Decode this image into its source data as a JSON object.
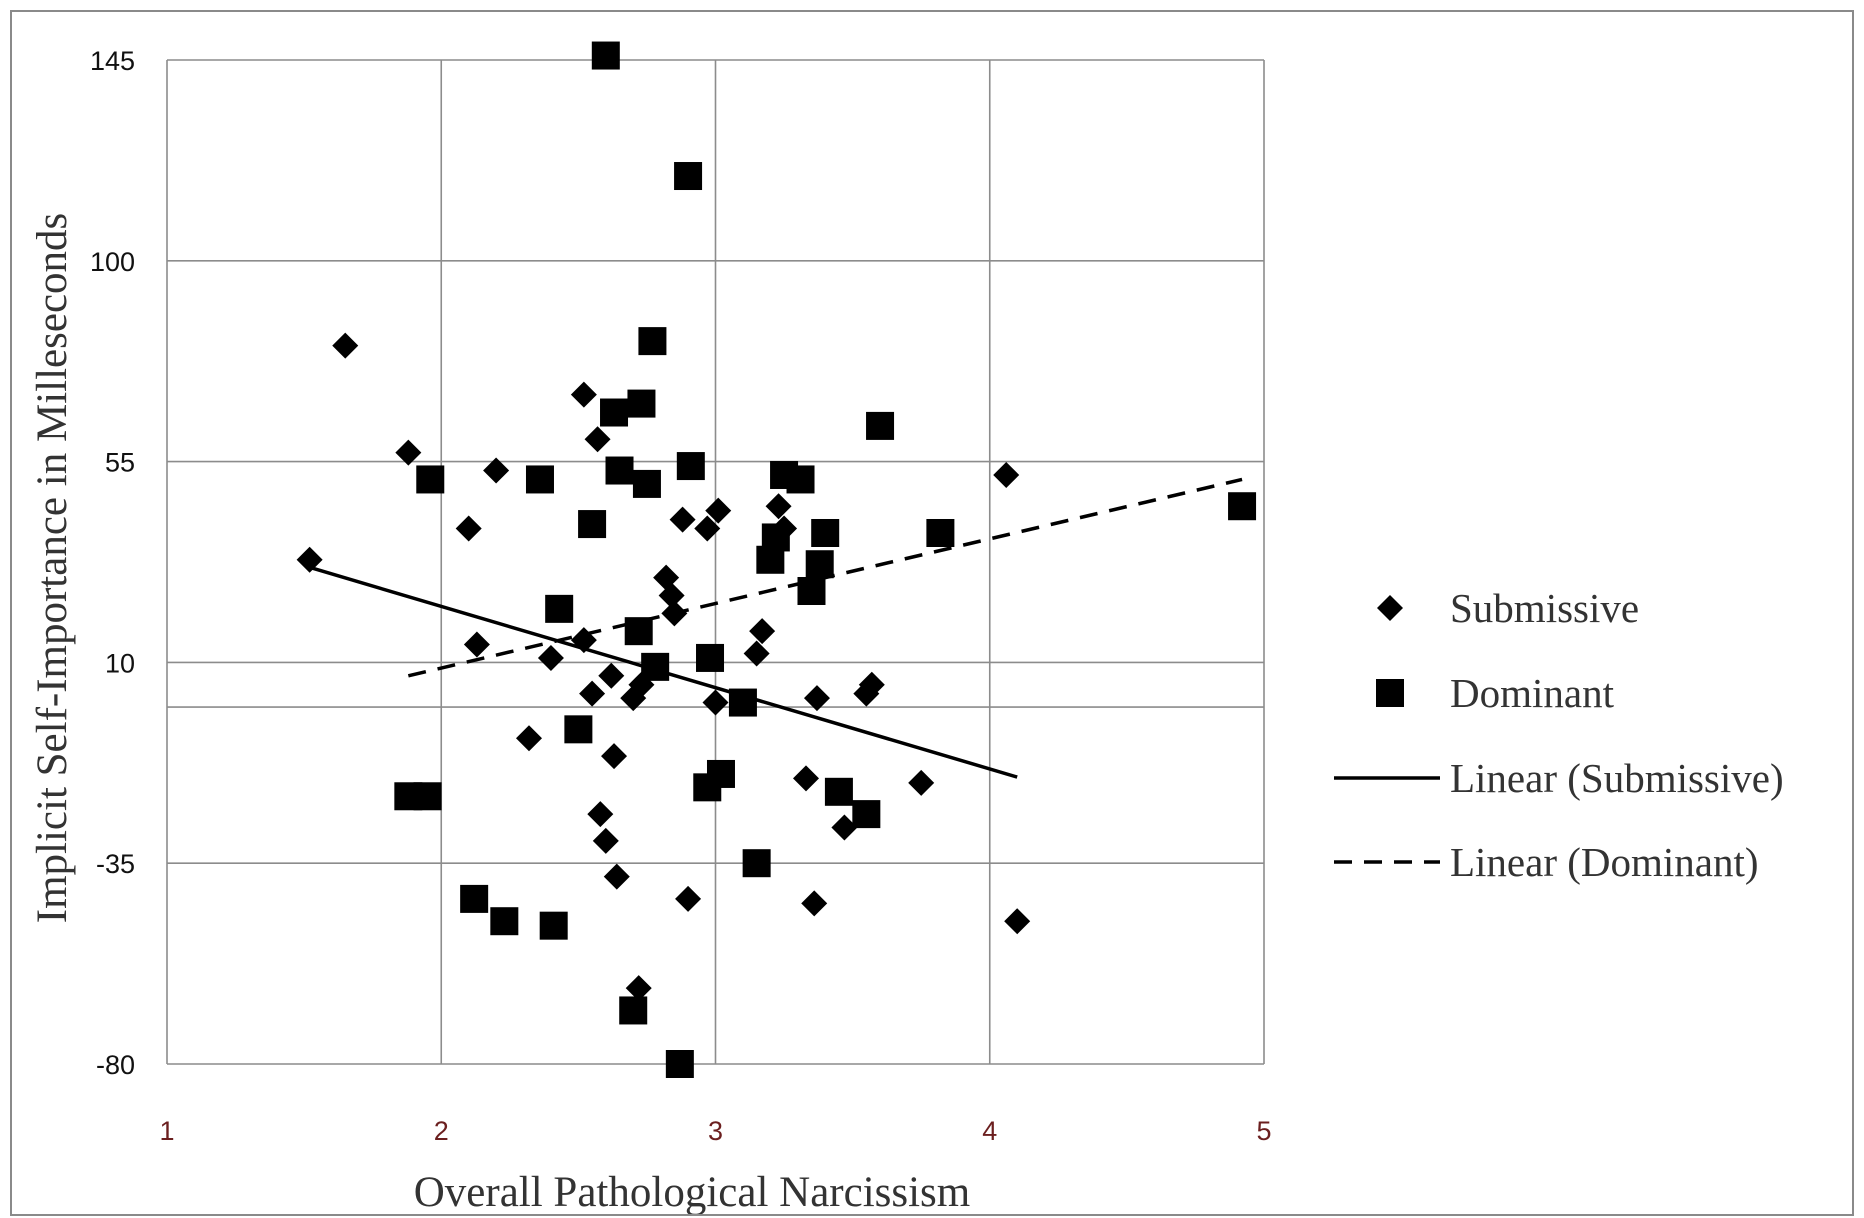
{
  "chart_data": {
    "type": "scatter",
    "title": "",
    "xlabel": "Overall Pathological Narcissism",
    "ylabel": "Implicit Self-Importance in Milleseconds",
    "xlim": [
      1,
      5
    ],
    "ylim": [
      -80,
      145
    ],
    "x_ticks": [
      1,
      2,
      3,
      4,
      5
    ],
    "y_ticks": [
      -80,
      -35,
      10,
      55,
      100,
      145
    ],
    "grid": true,
    "reference_line_y": 0,
    "legend_position": "right",
    "series": [
      {
        "name": "Submissive",
        "marker": "diamond",
        "points": [
          [
            1.52,
            33
          ],
          [
            1.65,
            81
          ],
          [
            1.88,
            57
          ],
          [
            2.1,
            40
          ],
          [
            2.13,
            14
          ],
          [
            2.2,
            53
          ],
          [
            2.32,
            -7
          ],
          [
            2.4,
            11
          ],
          [
            2.52,
            70
          ],
          [
            2.52,
            15
          ],
          [
            2.55,
            3
          ],
          [
            2.57,
            60
          ],
          [
            2.58,
            -24
          ],
          [
            2.6,
            -30
          ],
          [
            2.62,
            7
          ],
          [
            2.63,
            -11
          ],
          [
            2.64,
            -38
          ],
          [
            2.7,
            2
          ],
          [
            2.72,
            -63
          ],
          [
            2.73,
            5
          ],
          [
            2.82,
            29
          ],
          [
            2.84,
            25
          ],
          [
            2.85,
            21
          ],
          [
            2.88,
            42
          ],
          [
            2.9,
            -43
          ],
          [
            2.97,
            40
          ],
          [
            3.0,
            1
          ],
          [
            3.01,
            44
          ],
          [
            3.15,
            12
          ],
          [
            3.17,
            17
          ],
          [
            3.23,
            45
          ],
          [
            3.25,
            40
          ],
          [
            3.33,
            -16
          ],
          [
            3.36,
            -44
          ],
          [
            3.37,
            2
          ],
          [
            3.47,
            -27
          ],
          [
            3.55,
            3
          ],
          [
            3.57,
            5
          ],
          [
            3.75,
            -17
          ],
          [
            4.06,
            52
          ],
          [
            4.1,
            -48
          ]
        ]
      },
      {
        "name": "Dominant",
        "marker": "square",
        "points": [
          [
            1.88,
            -20
          ],
          [
            1.95,
            -20
          ],
          [
            1.96,
            51
          ],
          [
            2.12,
            -43
          ],
          [
            2.23,
            -48
          ],
          [
            2.36,
            51
          ],
          [
            2.41,
            -49
          ],
          [
            2.43,
            22
          ],
          [
            2.5,
            -5
          ],
          [
            2.55,
            41
          ],
          [
            2.6,
            146
          ],
          [
            2.63,
            66
          ],
          [
            2.65,
            53
          ],
          [
            2.7,
            -68
          ],
          [
            2.72,
            17
          ],
          [
            2.73,
            68
          ],
          [
            2.75,
            50
          ],
          [
            2.77,
            82
          ],
          [
            2.78,
            9
          ],
          [
            2.87,
            -80
          ],
          [
            2.9,
            119
          ],
          [
            2.91,
            54
          ],
          [
            2.97,
            -18
          ],
          [
            2.98,
            11
          ],
          [
            3.02,
            -15
          ],
          [
            3.1,
            1
          ],
          [
            3.15,
            -35
          ],
          [
            3.2,
            33
          ],
          [
            3.22,
            38
          ],
          [
            3.25,
            52
          ],
          [
            3.31,
            51
          ],
          [
            3.35,
            26
          ],
          [
            3.38,
            32
          ],
          [
            3.4,
            39
          ],
          [
            3.45,
            -19
          ],
          [
            3.55,
            -24
          ],
          [
            3.6,
            63
          ],
          [
            3.82,
            39
          ],
          [
            4.92,
            45
          ]
        ]
      }
    ],
    "trendlines": [
      {
        "name": "Linear (Submissive)",
        "style": "solid",
        "x_range": [
          1.52,
          4.1
        ],
        "y_range": [
          31.3,
          -15.7
        ]
      },
      {
        "name": "Linear (Dominant)",
        "style": "dashed",
        "x_range": [
          1.88,
          4.92
        ],
        "y_range": [
          7,
          51
        ]
      }
    ],
    "legend": [
      {
        "label": "Submissive",
        "symbol": "diamond"
      },
      {
        "label": "Dominant",
        "symbol": "square"
      },
      {
        "label": "Linear (Submissive)",
        "symbol": "solid-line"
      },
      {
        "label": "Linear (Dominant)",
        "symbol": "dashed-line"
      }
    ]
  }
}
